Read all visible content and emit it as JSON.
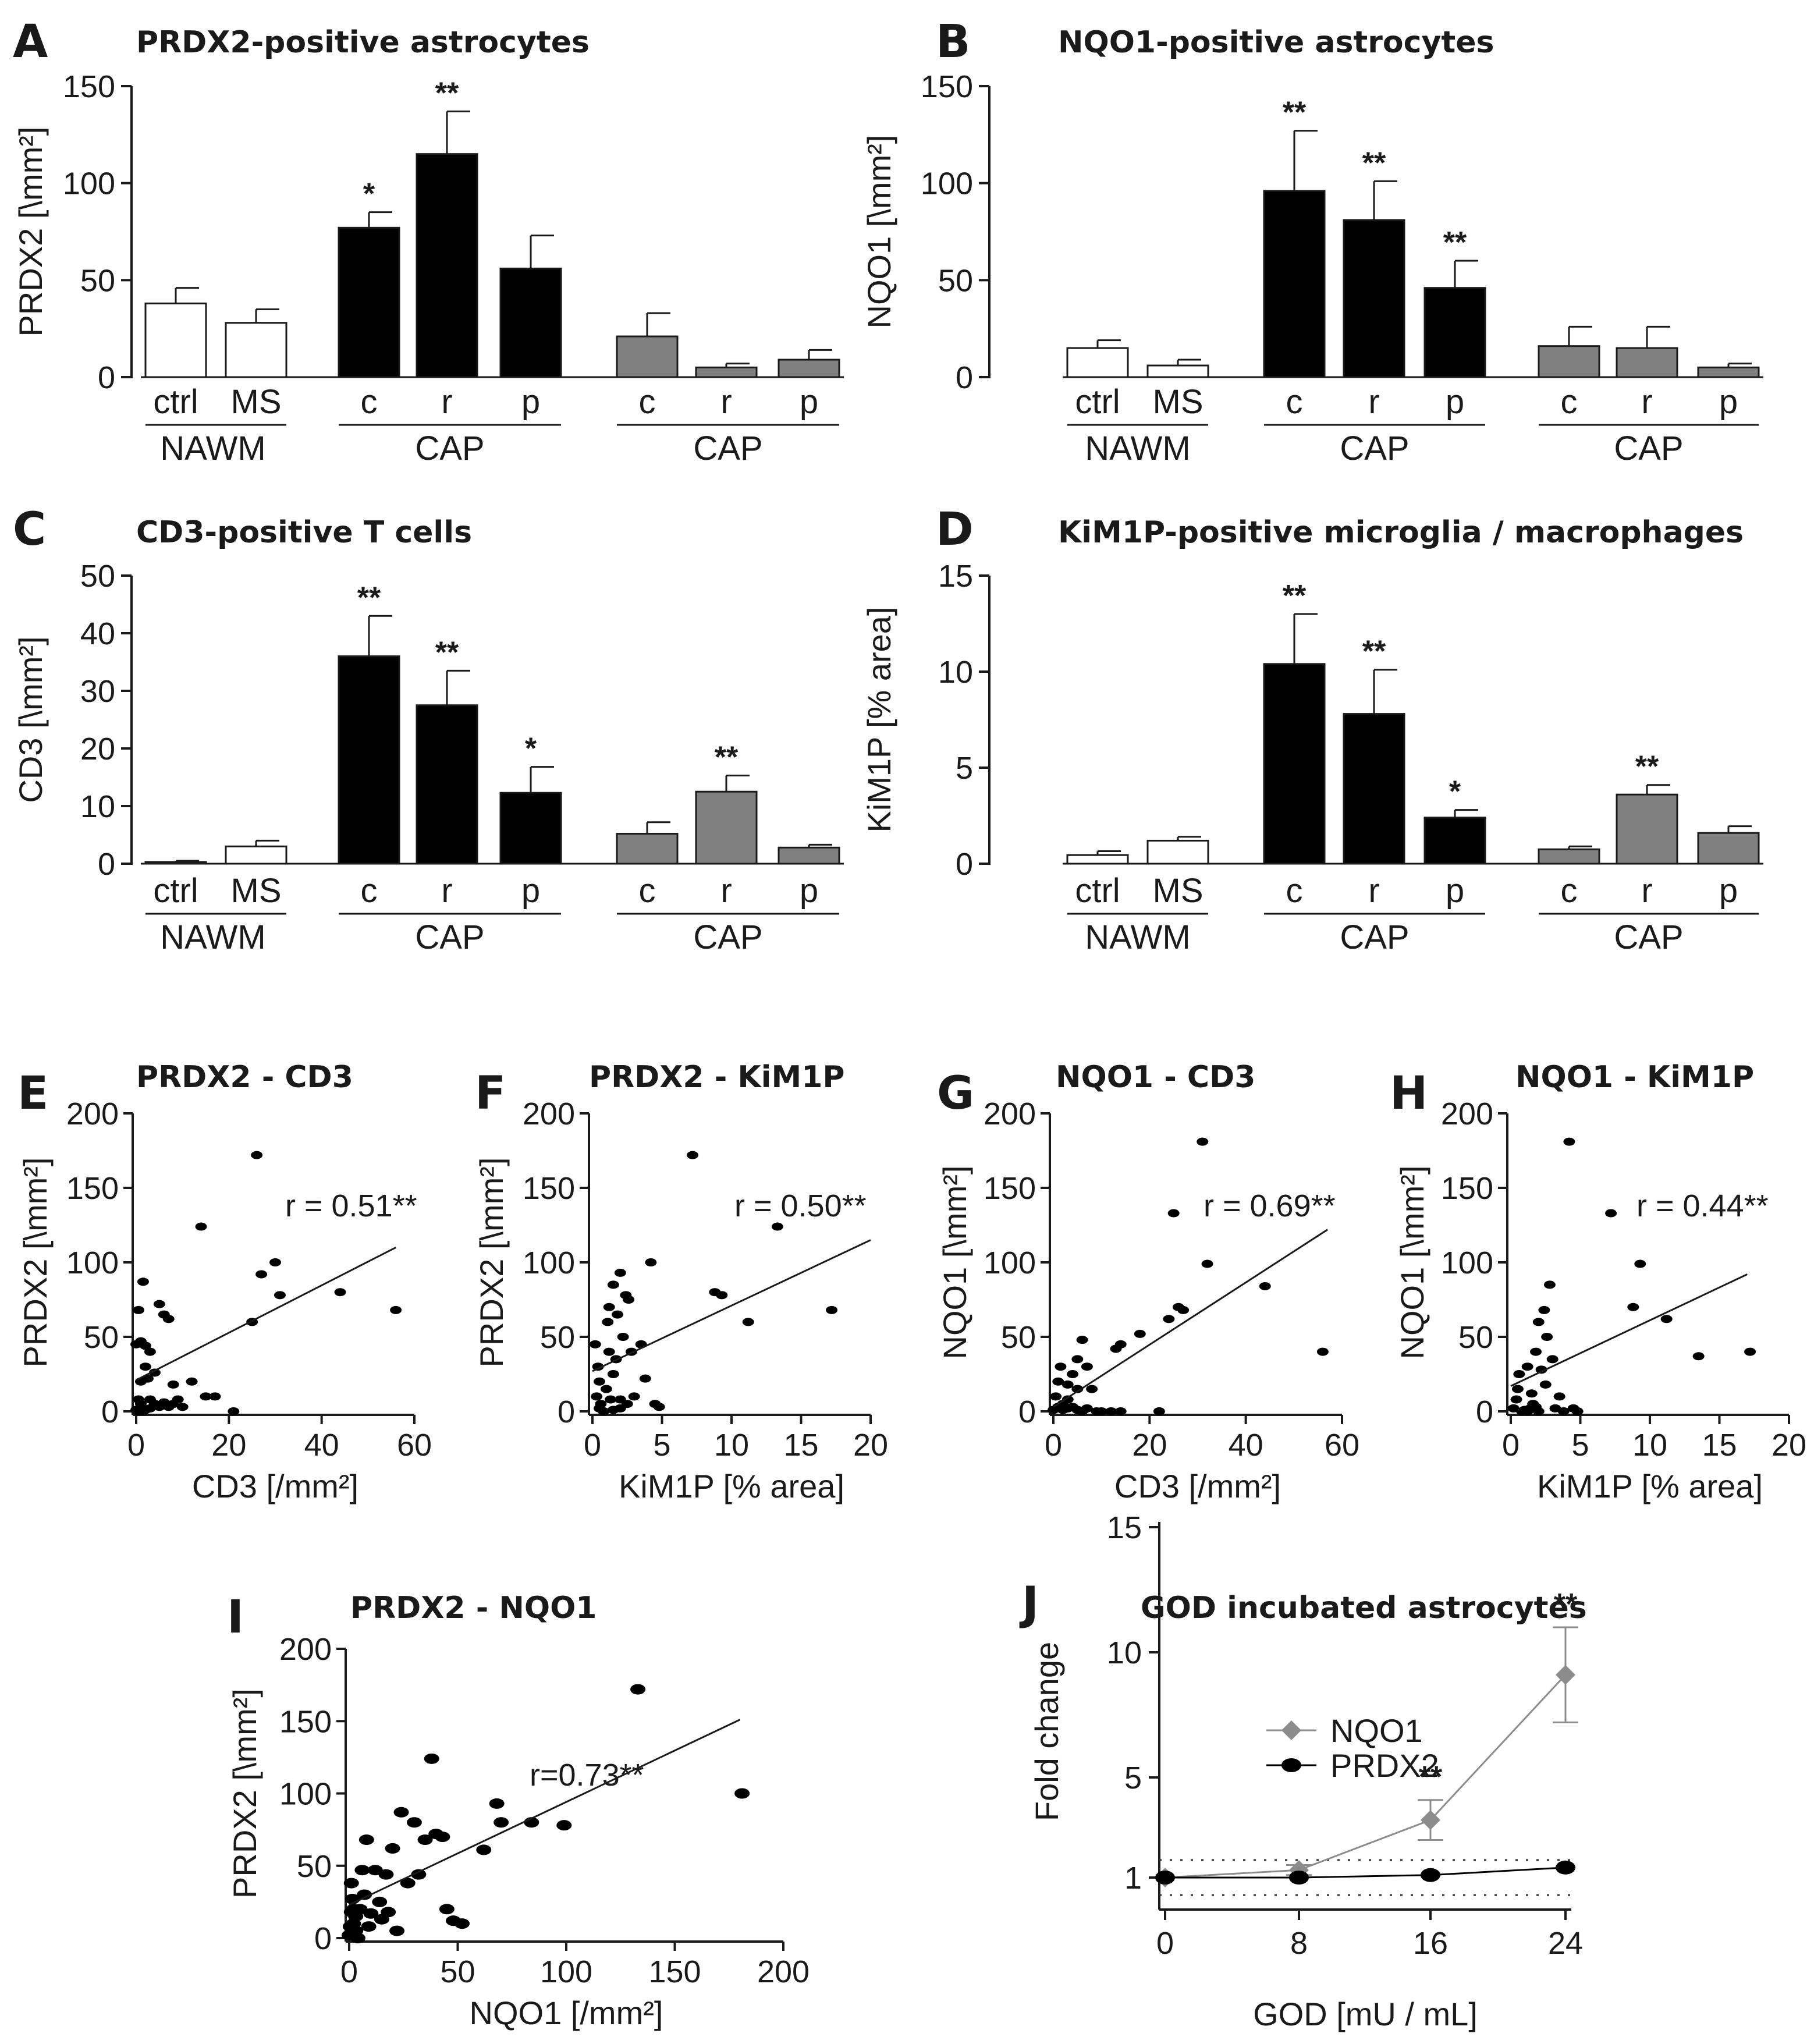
{
  "figure": {
    "colors": {
      "white_bar": "#ffffff",
      "black_bar": "#000000",
      "gray_bar": "#808080",
      "nqo1_line": "#8c8c8c",
      "prdx2_line": "#000000",
      "axis": "#1a1a1a"
    }
  },
  "chart_data": [
    {
      "panel": "A",
      "type": "bar",
      "title": "PRDX2-positive astrocytes",
      "ylabel": "PRDX2 [\\mm²]",
      "ylim": [
        0,
        150
      ],
      "yticks": [
        0,
        50,
        100,
        150
      ],
      "categories": [
        "ctrl",
        "MS",
        "c",
        "r",
        "p",
        "c",
        "r",
        "p"
      ],
      "groups": [
        "NAWM",
        "CAP",
        "CAP"
      ],
      "values": [
        38,
        28,
        77,
        115,
        56,
        21,
        5,
        9
      ],
      "errors": [
        8,
        7,
        8,
        22,
        17,
        12,
        2,
        5
      ],
      "fills": [
        "white",
        "white",
        "black",
        "black",
        "black",
        "gray",
        "gray",
        "gray"
      ],
      "significance": [
        "",
        "",
        "*",
        "**",
        "",
        "",
        "",
        ""
      ]
    },
    {
      "panel": "B",
      "type": "bar",
      "title": "NQO1-positive astrocytes",
      "ylabel": "NQO1 [\\mm²]",
      "ylim": [
        0,
        150
      ],
      "yticks": [
        0,
        50,
        100,
        150
      ],
      "categories": [
        "ctrl",
        "MS",
        "c",
        "r",
        "p",
        "c",
        "r",
        "p"
      ],
      "groups": [
        "NAWM",
        "CAP",
        "CAP"
      ],
      "values": [
        15,
        6,
        96,
        81,
        46,
        16,
        15,
        5
      ],
      "errors": [
        4,
        3,
        31,
        20,
        14,
        10,
        11,
        2
      ],
      "fills": [
        "white",
        "white",
        "black",
        "black",
        "black",
        "gray",
        "gray",
        "gray"
      ],
      "significance": [
        "",
        "",
        "**",
        "**",
        "**",
        "",
        "",
        ""
      ]
    },
    {
      "panel": "C",
      "type": "bar",
      "title": "CD3-positive T cells",
      "ylabel": "CD3 [\\mm²]",
      "ylim": [
        0,
        50
      ],
      "yticks": [
        0,
        10,
        20,
        30,
        40,
        50
      ],
      "categories": [
        "ctrl",
        "MS",
        "c",
        "r",
        "p",
        "c",
        "r",
        "p"
      ],
      "groups": [
        "NAWM",
        "CAP",
        "CAP"
      ],
      "values": [
        0.3,
        3,
        36,
        27.5,
        12.3,
        5.2,
        12.5,
        2.8
      ],
      "errors": [
        0.2,
        1,
        7,
        6,
        4.5,
        2,
        2.8,
        0.5
      ],
      "fills": [
        "white",
        "white",
        "black",
        "black",
        "black",
        "gray",
        "gray",
        "gray"
      ],
      "significance": [
        "",
        "",
        "**",
        "**",
        "*",
        "",
        "**",
        ""
      ]
    },
    {
      "panel": "D",
      "type": "bar",
      "title": "KiM1P-positive microglia / macrophages",
      "ylabel": "KiM1P [% area]",
      "ylim": [
        0,
        15
      ],
      "yticks": [
        0,
        5,
        10,
        15
      ],
      "categories": [
        "ctrl",
        "MS",
        "c",
        "r",
        "p",
        "c",
        "r",
        "p"
      ],
      "groups": [
        "NAWM",
        "CAP",
        "CAP"
      ],
      "values": [
        0.45,
        1.2,
        10.4,
        7.8,
        2.4,
        0.75,
        3.6,
        1.6
      ],
      "errors": [
        0.2,
        0.2,
        2.6,
        2.3,
        0.4,
        0.15,
        0.5,
        0.35
      ],
      "fills": [
        "white",
        "white",
        "black",
        "black",
        "black",
        "gray",
        "gray",
        "gray"
      ],
      "significance": [
        "",
        "",
        "**",
        "**",
        "*",
        "",
        "**",
        ""
      ]
    },
    {
      "panel": "E",
      "type": "scatter",
      "title": "PRDX2 - CD3",
      "xlabel": "CD3 [/mm²]",
      "ylabel": "PRDX2 [\\mm²]",
      "xlim": [
        0,
        60
      ],
      "ylim": [
        0,
        200
      ],
      "xticks": [
        0,
        20,
        40,
        60
      ],
      "yticks": [
        0,
        50,
        100,
        150,
        200
      ],
      "annotation": "r = 0.51**",
      "points": [
        [
          0,
          1
        ],
        [
          0.5,
          8
        ],
        [
          1,
          20
        ],
        [
          0,
          45
        ],
        [
          0.5,
          68
        ],
        [
          1,
          47
        ],
        [
          1.5,
          87
        ],
        [
          2,
          30
        ],
        [
          2.5,
          22
        ],
        [
          2,
          44
        ],
        [
          3,
          40
        ],
        [
          4,
          26
        ],
        [
          5,
          72
        ],
        [
          6,
          65
        ],
        [
          7,
          62
        ],
        [
          3,
          8
        ],
        [
          4,
          5
        ],
        [
          5,
          3
        ],
        [
          6,
          6
        ],
        [
          7,
          3
        ],
        [
          8,
          5
        ],
        [
          9,
          8
        ],
        [
          10,
          3
        ],
        [
          1,
          5
        ],
        [
          2,
          1
        ],
        [
          3,
          2
        ],
        [
          0.5,
          0
        ],
        [
          1.5,
          0
        ],
        [
          12,
          20
        ],
        [
          14,
          124
        ],
        [
          15,
          10
        ],
        [
          17,
          10
        ],
        [
          21,
          0
        ],
        [
          25,
          60
        ],
        [
          26,
          172
        ],
        [
          27,
          92
        ],
        [
          30,
          100
        ],
        [
          31,
          78
        ],
        [
          44,
          80
        ],
        [
          56,
          68
        ],
        [
          8,
          18
        ]
      ],
      "fit": [
        [
          0,
          21
        ],
        [
          56,
          110
        ]
      ]
    },
    {
      "panel": "F",
      "type": "scatter",
      "title": "PRDX2 - KiM1P",
      "xlabel": "KiM1P [% area]",
      "ylabel": "PRDX2 [\\mm²]",
      "xlim": [
        0,
        20
      ],
      "ylim": [
        0,
        200
      ],
      "xticks": [
        0,
        5,
        10,
        15,
        20
      ],
      "yticks": [
        0,
        50,
        100,
        150,
        200
      ],
      "annotation": "r = 0.50**",
      "points": [
        [
          0.2,
          45
        ],
        [
          0.4,
          30
        ],
        [
          0.5,
          20
        ],
        [
          0.3,
          10
        ],
        [
          0.6,
          5
        ],
        [
          0.8,
          0
        ],
        [
          1,
          15
        ],
        [
          1.2,
          40
        ],
        [
          1.3,
          8
        ],
        [
          1.5,
          25
        ],
        [
          1.7,
          35
        ],
        [
          1.1,
          60
        ],
        [
          1.2,
          70
        ],
        [
          1.5,
          85
        ],
        [
          1.8,
          65
        ],
        [
          2,
          93
        ],
        [
          2.2,
          50
        ],
        [
          2.4,
          78
        ],
        [
          2.6,
          75
        ],
        [
          2.8,
          40
        ],
        [
          3,
          10
        ],
        [
          2,
          8
        ],
        [
          2.5,
          5
        ],
        [
          3.5,
          45
        ],
        [
          3.8,
          22
        ],
        [
          4.2,
          100
        ],
        [
          4.5,
          5
        ],
        [
          4.8,
          3
        ],
        [
          2,
          2
        ],
        [
          1.5,
          1
        ],
        [
          0.5,
          2
        ],
        [
          7.2,
          172
        ],
        [
          8.8,
          80
        ],
        [
          9.3,
          78
        ],
        [
          11.2,
          60
        ],
        [
          13.3,
          124
        ],
        [
          17.2,
          68
        ]
      ],
      "fit": [
        [
          0,
          27
        ],
        [
          20,
          115
        ]
      ]
    },
    {
      "panel": "G",
      "type": "scatter",
      "title": "NQO1 - CD3",
      "xlabel": "CD3 [/mm²]",
      "ylabel": "NQO1 [\\mm²]",
      "xlim": [
        0,
        60
      ],
      "ylim": [
        0,
        200
      ],
      "xticks": [
        0,
        20,
        40,
        60
      ],
      "yticks": [
        0,
        50,
        100,
        150,
        200
      ],
      "annotation": "r = 0.69**",
      "points": [
        [
          0,
          1
        ],
        [
          0.5,
          10
        ],
        [
          1,
          20
        ],
        [
          1.5,
          30
        ],
        [
          2,
          5
        ],
        [
          3,
          2
        ],
        [
          4,
          25
        ],
        [
          5,
          35
        ],
        [
          6,
          48
        ],
        [
          7,
          30
        ],
        [
          8,
          15
        ],
        [
          9,
          0
        ],
        [
          3,
          8
        ],
        [
          4,
          3
        ],
        [
          5,
          1
        ],
        [
          6,
          0
        ],
        [
          7,
          2
        ],
        [
          10,
          0
        ],
        [
          12,
          0
        ],
        [
          14,
          0
        ],
        [
          2,
          1
        ],
        [
          1,
          3
        ],
        [
          13,
          42
        ],
        [
          14,
          45
        ],
        [
          18,
          52
        ],
        [
          22,
          0
        ],
        [
          24,
          62
        ],
        [
          25,
          133
        ],
        [
          26,
          70
        ],
        [
          27,
          68
        ],
        [
          31,
          181
        ],
        [
          32,
          99
        ],
        [
          44,
          84
        ],
        [
          56,
          40
        ],
        [
          5,
          15
        ],
        [
          3,
          18
        ]
      ],
      "fit": [
        [
          0,
          3
        ],
        [
          57,
          122
        ]
      ]
    },
    {
      "panel": "H",
      "type": "scatter",
      "title": "NQO1 - KiM1P",
      "xlabel": "KiM1P [% area]",
      "ylabel": "NQO1 [\\mm²]",
      "xlim": [
        0,
        20
      ],
      "ylim": [
        0,
        200
      ],
      "xticks": [
        0,
        5,
        10,
        15,
        20
      ],
      "yticks": [
        0,
        50,
        100,
        150,
        200
      ],
      "annotation": "r = 0.44**",
      "points": [
        [
          0.2,
          2
        ],
        [
          0.4,
          8
        ],
        [
          0.5,
          15
        ],
        [
          0.6,
          25
        ],
        [
          0.8,
          0
        ],
        [
          1,
          1
        ],
        [
          1.2,
          30
        ],
        [
          1.4,
          2
        ],
        [
          1.5,
          12
        ],
        [
          1.6,
          5
        ],
        [
          1.8,
          40
        ],
        [
          2,
          0
        ],
        [
          2.2,
          28
        ],
        [
          2.4,
          68
        ],
        [
          2.6,
          50
        ],
        [
          2.8,
          85
        ],
        [
          3,
          35
        ],
        [
          3.2,
          2
        ],
        [
          3.5,
          10
        ],
        [
          3.8,
          0
        ],
        [
          2,
          60
        ],
        [
          1.2,
          0
        ],
        [
          4.2,
          181
        ],
        [
          4.5,
          2
        ],
        [
          4.8,
          0
        ],
        [
          7.2,
          133
        ],
        [
          8.8,
          70
        ],
        [
          9.3,
          99
        ],
        [
          11.2,
          62
        ],
        [
          13.5,
          37
        ],
        [
          17.2,
          40
        ],
        [
          2.5,
          18
        ],
        [
          1.8,
          3
        ]
      ],
      "fit": [
        [
          0,
          17
        ],
        [
          17,
          92
        ]
      ]
    },
    {
      "panel": "I",
      "type": "scatter",
      "title": "PRDX2 - NQO1",
      "xlabel": "NQO1 [/mm²]",
      "ylabel": "PRDX2 [\\mm²]",
      "xlim": [
        0,
        200
      ],
      "ylim": [
        0,
        200
      ],
      "xticks": [
        0,
        50,
        100,
        150,
        200
      ],
      "yticks": [
        0,
        50,
        100,
        150,
        200
      ],
      "annotation": "r=0.73**",
      "points": [
        [
          0,
          2
        ],
        [
          0.5,
          8
        ],
        [
          1,
          18
        ],
        [
          1,
          38
        ],
        [
          1.5,
          27
        ],
        [
          2,
          10
        ],
        [
          3,
          5
        ],
        [
          4,
          0
        ],
        [
          5,
          20
        ],
        [
          6,
          47
        ],
        [
          7,
          30
        ],
        [
          8,
          68
        ],
        [
          9,
          8
        ],
        [
          10,
          17
        ],
        [
          12,
          47
        ],
        [
          14,
          25
        ],
        [
          15,
          13
        ],
        [
          17,
          44
        ],
        [
          18,
          18
        ],
        [
          20,
          62
        ],
        [
          22,
          5
        ],
        [
          24,
          87
        ],
        [
          27,
          38
        ],
        [
          30,
          80
        ],
        [
          32,
          44
        ],
        [
          35,
          68
        ],
        [
          38,
          124
        ],
        [
          40,
          72
        ],
        [
          43,
          70
        ],
        [
          45,
          20
        ],
        [
          48,
          12
        ],
        [
          52,
          10
        ],
        [
          62,
          61
        ],
        [
          68,
          93
        ],
        [
          70,
          80
        ],
        [
          84,
          80
        ],
        [
          99,
          78
        ],
        [
          133,
          172
        ],
        [
          181,
          100
        ],
        [
          3,
          15
        ],
        [
          2,
          20
        ]
      ],
      "fit": [
        [
          0,
          23
        ],
        [
          180,
          151
        ]
      ]
    },
    {
      "panel": "J",
      "type": "line",
      "title": "GOD incubated astrocytes",
      "xlabel": "GOD [mU / mL]",
      "ylabel": "Fold change",
      "x": [
        0,
        8,
        16,
        24
      ],
      "xticks": [
        0,
        8,
        16,
        24
      ],
      "yticks": [
        1,
        5,
        10,
        15
      ],
      "ylim": [
        0,
        15
      ],
      "reference_band": [
        0.3,
        1.7
      ],
      "series": [
        {
          "name": "NQO1",
          "values": [
            1,
            1.3,
            3.3,
            9.1
          ],
          "errors": [
            0.1,
            0.2,
            0.8,
            1.9
          ],
          "marker": "diamond"
        },
        {
          "name": "PRDX2",
          "values": [
            1,
            1,
            1.1,
            1.4
          ],
          "errors": [
            0.05,
            0.05,
            0.1,
            0.1
          ],
          "marker": "circle"
        }
      ],
      "significance": [
        "",
        "",
        "**",
        "**"
      ]
    }
  ]
}
